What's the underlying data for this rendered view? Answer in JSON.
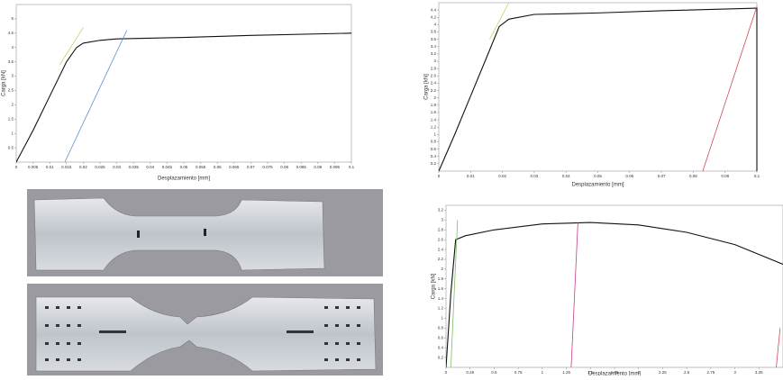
{
  "chart_data": [
    {
      "type": "line",
      "xlabel": "Desplazamiento [mm]",
      "ylabel": "Carga [kN]",
      "xlim": [
        0,
        0.1
      ],
      "xticks": [
        0,
        0.005,
        0.01,
        0.015,
        0.02,
        0.025,
        0.03,
        0.035,
        0.04,
        0.045,
        0.05,
        0.055,
        0.06,
        0.065,
        0.07,
        0.075,
        0.08,
        0.085,
        0.09,
        0.095,
        0.1
      ],
      "ylim": [
        0,
        5.5
      ],
      "yticks": [
        0.5,
        1,
        1.5,
        2,
        2.5,
        3,
        3.5,
        4,
        4.5,
        5
      ],
      "series": [
        {
          "color": "#111111",
          "x": [
            0,
            0.005,
            0.01,
            0.015,
            0.018,
            0.02,
            0.025,
            0.03,
            0.05,
            0.07,
            0.1
          ],
          "values": [
            0,
            1.1,
            2.3,
            3.5,
            4.0,
            4.15,
            4.25,
            4.3,
            4.35,
            4.42,
            4.5
          ]
        },
        {
          "color": "#c8d060",
          "x": [
            0.013,
            0.02
          ],
          "values": [
            3.4,
            4.7
          ]
        },
        {
          "color": "#5b8fd6",
          "x": [
            0.0145,
            0.033
          ],
          "values": [
            0,
            4.6
          ]
        }
      ]
    },
    {
      "type": "line",
      "xlabel": "Desplazamiento [mm]",
      "ylabel": "Carga [kN]",
      "xlim": [
        0,
        0.1
      ],
      "xticks": [
        0,
        0.01,
        0.02,
        0.03,
        0.04,
        0.05,
        0.06,
        0.07,
        0.08,
        0.09,
        0.1
      ],
      "ylim": [
        0,
        4.6
      ],
      "yticks": [
        0.2,
        0.4,
        0.6,
        0.8,
        1,
        1.2,
        1.4,
        1.6,
        1.8,
        2,
        2.2,
        2.4,
        2.6,
        2.8,
        3,
        3.2,
        3.4,
        3.6,
        3.8,
        4,
        4.2,
        4.4
      ],
      "series": [
        {
          "color": "#111111",
          "x": [
            0,
            0.005,
            0.01,
            0.015,
            0.019,
            0.022,
            0.03,
            0.05,
            0.07,
            0.1,
            0.1
          ],
          "values": [
            0,
            1.0,
            2.05,
            3.1,
            3.95,
            4.15,
            4.28,
            4.32,
            4.38,
            4.45,
            0
          ]
        },
        {
          "color": "#c8d060",
          "x": [
            0.016,
            0.022
          ],
          "values": [
            3.6,
            4.6
          ]
        },
        {
          "color": "#d04a5a",
          "x": [
            0.083,
            0.1
          ],
          "values": [
            0,
            4.5
          ]
        }
      ]
    },
    {
      "type": "line",
      "xlabel": "Desplazamiento [mm]",
      "ylabel": "Carga [kN]",
      "xlim": [
        0,
        3.5
      ],
      "xticks": [
        0,
        0.25,
        0.5,
        0.75,
        1,
        1.25,
        1.5,
        1.75,
        2,
        2.25,
        2.5,
        2.75,
        3,
        3.25
      ],
      "ylim": [
        0,
        3.3
      ],
      "yticks": [
        0.2,
        0.4,
        0.6,
        0.8,
        1,
        1.2,
        1.4,
        1.6,
        1.8,
        2,
        2.2,
        2.4,
        2.6,
        2.8,
        3,
        3.2
      ],
      "series": [
        {
          "color": "#111111",
          "x": [
            0,
            0.05,
            0.1,
            0.2,
            0.5,
            1,
            1.5,
            2,
            2.5,
            3,
            3.5
          ],
          "values": [
            0,
            1.5,
            2.6,
            2.68,
            2.8,
            2.92,
            2.95,
            2.9,
            2.75,
            2.5,
            2.1
          ]
        },
        {
          "color": "#7ac060",
          "x": [
            0.05,
            0.12
          ],
          "values": [
            0,
            3.0
          ]
        },
        {
          "color": "#c0408a",
          "x": [
            1.3,
            1.37
          ],
          "values": [
            0,
            2.95
          ]
        },
        {
          "color": "#d04a5a",
          "x": [
            3.43,
            3.47
          ],
          "values": [
            0,
            0.8
          ]
        }
      ]
    }
  ]
}
